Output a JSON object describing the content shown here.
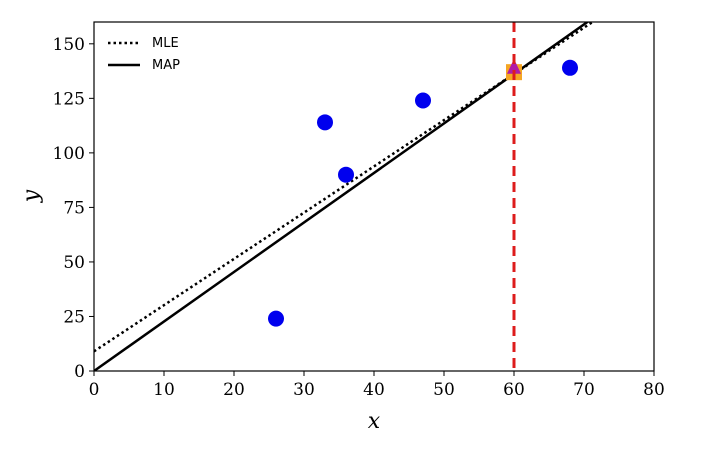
{
  "chart_data": {
    "type": "scatter",
    "xlabel": "x",
    "ylabel": "y",
    "xlim": [
      0,
      80
    ],
    "ylim": [
      0,
      160
    ],
    "xticks": [
      0,
      10,
      20,
      30,
      40,
      50,
      60,
      70,
      80
    ],
    "yticks": [
      0,
      25,
      50,
      75,
      100,
      125,
      150
    ],
    "grid": false,
    "legend_position": "top-left",
    "points": {
      "color": "#0000ee",
      "x": [
        26,
        33,
        36,
        47,
        68
      ],
      "y": [
        24,
        114,
        90,
        124,
        139
      ]
    },
    "series": [
      {
        "name": "MLE",
        "style": "dotted",
        "color": "#000000",
        "intercept": 9,
        "slope": 2.12
      },
      {
        "name": "MAP",
        "style": "solid",
        "color": "#000000",
        "intercept": 0,
        "slope": 2.27
      }
    ],
    "vline": {
      "x": 60,
      "color": "#dd1c1c",
      "style": "dashed"
    },
    "markers": [
      {
        "shape": "square",
        "x": 60,
        "y": 137,
        "color": "#f5a623"
      },
      {
        "shape": "triangle",
        "x": 60,
        "y": 139,
        "color": "#b01aa7"
      }
    ]
  }
}
